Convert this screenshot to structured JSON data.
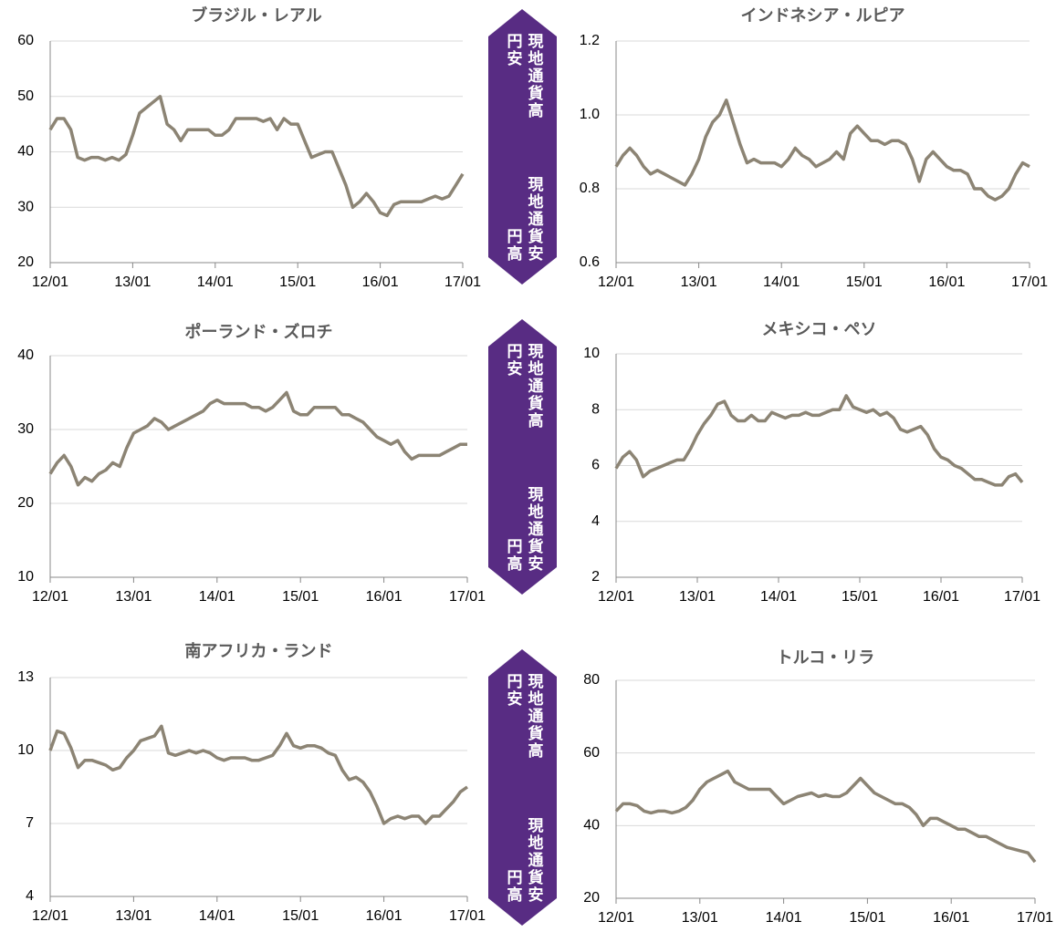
{
  "chart_data": [
    {
      "type": "line",
      "title": "ブラジル・レアル",
      "x": [
        "12/01",
        "12/02",
        "12/03",
        "12/04",
        "12/05",
        "12/06",
        "12/07",
        "12/08",
        "12/09",
        "12/10",
        "12/11",
        "12/12",
        "13/01",
        "13/02",
        "13/03",
        "13/04",
        "13/05",
        "13/06",
        "13/07",
        "13/08",
        "13/09",
        "13/10",
        "13/11",
        "13/12",
        "14/01",
        "14/02",
        "14/03",
        "14/04",
        "14/05",
        "14/06",
        "14/07",
        "14/08",
        "14/09",
        "14/10",
        "14/11",
        "14/12",
        "15/01",
        "15/02",
        "15/03",
        "15/04",
        "15/05",
        "15/06",
        "15/07",
        "15/08",
        "15/09",
        "15/10",
        "15/11",
        "15/12",
        "16/01",
        "16/02",
        "16/03",
        "16/04",
        "16/05",
        "16/06",
        "16/07",
        "16/08",
        "16/09",
        "16/10",
        "16/11",
        "16/12",
        "17/01"
      ],
      "values": [
        44,
        46,
        46,
        44,
        39,
        38.5,
        39,
        39,
        38.5,
        39,
        38.5,
        39.5,
        43,
        47,
        48,
        49,
        50,
        45,
        44,
        42,
        44,
        44,
        44,
        44,
        43,
        43,
        44,
        46,
        46,
        46,
        46,
        45.5,
        46,
        44,
        46,
        45,
        45,
        42,
        39,
        39.5,
        40,
        40,
        37,
        34,
        30,
        31,
        32.5,
        31,
        29,
        28.5,
        30.5,
        31,
        31,
        31,
        31,
        31.5,
        32,
        31.5,
        32,
        34,
        36
      ],
      "color": "#8c8474",
      "ylim": [
        20,
        60
      ],
      "yticks": [
        20,
        30,
        40,
        50,
        60
      ],
      "xticks": [
        "12/01",
        "13/01",
        "14/01",
        "15/01",
        "16/01",
        "17/01"
      ],
      "grid": true
    },
    {
      "type": "line",
      "title": "インドネシア・ルピア",
      "x": [
        "12/01",
        "12/02",
        "12/03",
        "12/04",
        "12/05",
        "12/06",
        "12/07",
        "12/08",
        "12/09",
        "12/10",
        "12/11",
        "12/12",
        "13/01",
        "13/02",
        "13/03",
        "13/04",
        "13/05",
        "13/06",
        "13/07",
        "13/08",
        "13/09",
        "13/10",
        "13/11",
        "13/12",
        "14/01",
        "14/02",
        "14/03",
        "14/04",
        "14/05",
        "14/06",
        "14/07",
        "14/08",
        "14/09",
        "14/10",
        "14/11",
        "14/12",
        "15/01",
        "15/02",
        "15/03",
        "15/04",
        "15/05",
        "15/06",
        "15/07",
        "15/08",
        "15/09",
        "15/10",
        "15/11",
        "15/12",
        "16/01",
        "16/02",
        "16/03",
        "16/04",
        "16/05",
        "16/06",
        "16/07",
        "16/08",
        "16/09",
        "16/10",
        "16/11",
        "16/12",
        "17/01"
      ],
      "values": [
        0.86,
        0.89,
        0.91,
        0.89,
        0.86,
        0.84,
        0.85,
        0.84,
        0.83,
        0.82,
        0.81,
        0.84,
        0.88,
        0.94,
        0.98,
        1.0,
        1.04,
        0.98,
        0.92,
        0.87,
        0.88,
        0.87,
        0.87,
        0.87,
        0.86,
        0.88,
        0.91,
        0.89,
        0.88,
        0.86,
        0.87,
        0.88,
        0.9,
        0.88,
        0.95,
        0.97,
        0.95,
        0.93,
        0.93,
        0.92,
        0.93,
        0.93,
        0.92,
        0.88,
        0.82,
        0.88,
        0.9,
        0.88,
        0.86,
        0.85,
        0.85,
        0.84,
        0.8,
        0.8,
        0.78,
        0.77,
        0.78,
        0.8,
        0.84,
        0.87,
        0.86
      ],
      "color": "#8c8474",
      "ylim": [
        0.6,
        1.2
      ],
      "yticks": [
        {
          "value": 0.6,
          "label": "0.6"
        },
        {
          "value": 0.8,
          "label": "0.8"
        },
        {
          "value": 1.0,
          "label": "1.0"
        },
        {
          "value": 1.2,
          "label": "1.2"
        }
      ],
      "xticks": [
        "12/01",
        "13/01",
        "14/01",
        "15/01",
        "16/01",
        "17/01"
      ],
      "grid": true
    },
    {
      "type": "line",
      "title": "ポーランド・ズロチ",
      "x": [
        "12/01",
        "12/02",
        "12/03",
        "12/04",
        "12/05",
        "12/06",
        "12/07",
        "12/08",
        "12/09",
        "12/10",
        "12/11",
        "12/12",
        "13/01",
        "13/02",
        "13/03",
        "13/04",
        "13/05",
        "13/06",
        "13/07",
        "13/08",
        "13/09",
        "13/10",
        "13/11",
        "13/12",
        "14/01",
        "14/02",
        "14/03",
        "14/04",
        "14/05",
        "14/06",
        "14/07",
        "14/08",
        "14/09",
        "14/10",
        "14/11",
        "14/12",
        "15/01",
        "15/02",
        "15/03",
        "15/04",
        "15/05",
        "15/06",
        "15/07",
        "15/08",
        "15/09",
        "15/10",
        "15/11",
        "15/12",
        "16/01",
        "16/02",
        "16/03",
        "16/04",
        "16/05",
        "16/06",
        "16/07",
        "16/08",
        "16/09",
        "16/10",
        "16/11",
        "16/12",
        "17/01"
      ],
      "values": [
        24,
        25.5,
        26.5,
        25,
        22.5,
        23.5,
        23,
        24,
        24.5,
        25.5,
        25,
        27.5,
        29.5,
        30,
        30.5,
        31.5,
        31,
        30,
        30.5,
        31,
        31.5,
        32,
        32.5,
        33.5,
        34,
        33.5,
        33.5,
        33.5,
        33.5,
        33,
        33,
        32.5,
        33,
        34,
        35,
        32.5,
        32,
        32,
        33,
        33,
        33,
        33,
        32,
        32,
        31.5,
        31,
        30,
        29,
        28.5,
        28,
        28.5,
        27,
        26,
        26.5,
        26.5,
        26.5,
        26.5,
        27,
        27.5,
        28,
        28
      ],
      "color": "#8c8474",
      "ylim": [
        10,
        40
      ],
      "yticks": [
        10,
        20,
        30,
        40
      ],
      "xticks": [
        "12/01",
        "13/01",
        "14/01",
        "15/01",
        "16/01",
        "17/01"
      ],
      "grid": true
    },
    {
      "type": "line",
      "title": "メキシコ・ペソ",
      "x": [
        "12/01",
        "12/02",
        "12/03",
        "12/04",
        "12/05",
        "12/06",
        "12/07",
        "12/08",
        "12/09",
        "12/10",
        "12/11",
        "12/12",
        "13/01",
        "13/02",
        "13/03",
        "13/04",
        "13/05",
        "13/06",
        "13/07",
        "13/08",
        "13/09",
        "13/10",
        "13/11",
        "13/12",
        "14/01",
        "14/02",
        "14/03",
        "14/04",
        "14/05",
        "14/06",
        "14/07",
        "14/08",
        "14/09",
        "14/10",
        "14/11",
        "14/12",
        "15/01",
        "15/02",
        "15/03",
        "15/04",
        "15/05",
        "15/06",
        "15/07",
        "15/08",
        "15/09",
        "15/10",
        "15/11",
        "15/12",
        "16/01",
        "16/02",
        "16/03",
        "16/04",
        "16/05",
        "16/06",
        "16/07",
        "16/08",
        "16/09",
        "16/10",
        "16/11",
        "16/12",
        "17/01"
      ],
      "values": [
        5.9,
        6.3,
        6.5,
        6.2,
        5.6,
        5.8,
        5.9,
        6.0,
        6.1,
        6.2,
        6.2,
        6.6,
        7.1,
        7.5,
        7.8,
        8.2,
        8.3,
        7.8,
        7.6,
        7.6,
        7.8,
        7.6,
        7.6,
        7.9,
        7.8,
        7.7,
        7.8,
        7.8,
        7.9,
        7.8,
        7.8,
        7.9,
        8.0,
        8.0,
        8.5,
        8.1,
        8.0,
        7.9,
        8.0,
        7.8,
        7.9,
        7.7,
        7.3,
        7.2,
        7.3,
        7.4,
        7.1,
        6.6,
        6.3,
        6.2,
        6.0,
        5.9,
        5.7,
        5.5,
        5.5,
        5.4,
        5.3,
        5.3,
        5.6,
        5.7,
        5.4
      ],
      "color": "#8c8474",
      "ylim": [
        2,
        10
      ],
      "yticks": [
        2,
        4,
        6,
        8,
        10
      ],
      "xticks": [
        "12/01",
        "13/01",
        "14/01",
        "15/01",
        "16/01",
        "17/01"
      ],
      "grid": true
    },
    {
      "type": "line",
      "title": "南アフリカ・ランド",
      "x": [
        "12/01",
        "12/02",
        "12/03",
        "12/04",
        "12/05",
        "12/06",
        "12/07",
        "12/08",
        "12/09",
        "12/10",
        "12/11",
        "12/12",
        "13/01",
        "13/02",
        "13/03",
        "13/04",
        "13/05",
        "13/06",
        "13/07",
        "13/08",
        "13/09",
        "13/10",
        "13/11",
        "13/12",
        "14/01",
        "14/02",
        "14/03",
        "14/04",
        "14/05",
        "14/06",
        "14/07",
        "14/08",
        "14/09",
        "14/10",
        "14/11",
        "14/12",
        "15/01",
        "15/02",
        "15/03",
        "15/04",
        "15/05",
        "15/06",
        "15/07",
        "15/08",
        "15/09",
        "15/10",
        "15/11",
        "15/12",
        "16/01",
        "16/02",
        "16/03",
        "16/04",
        "16/05",
        "16/06",
        "16/07",
        "16/08",
        "16/09",
        "16/10",
        "16/11",
        "16/12",
        "17/01"
      ],
      "values": [
        10.0,
        10.8,
        10.7,
        10.1,
        9.3,
        9.6,
        9.6,
        9.5,
        9.4,
        9.2,
        9.3,
        9.7,
        10.0,
        10.4,
        10.5,
        10.6,
        11.0,
        9.9,
        9.8,
        9.9,
        10.0,
        9.9,
        10.0,
        9.9,
        9.7,
        9.6,
        9.7,
        9.7,
        9.7,
        9.6,
        9.6,
        9.7,
        9.8,
        10.2,
        10.7,
        10.2,
        10.1,
        10.2,
        10.2,
        10.1,
        9.9,
        9.8,
        9.2,
        8.8,
        8.9,
        8.7,
        8.3,
        7.7,
        7.0,
        7.2,
        7.3,
        7.2,
        7.3,
        7.3,
        7.0,
        7.3,
        7.3,
        7.6,
        7.9,
        8.3,
        8.5
      ],
      "color": "#8c8474",
      "ylim": [
        4,
        13
      ],
      "yticks": [
        4,
        7,
        10,
        13
      ],
      "xticks": [
        "12/01",
        "13/01",
        "14/01",
        "15/01",
        "16/01",
        "17/01"
      ],
      "grid": true
    },
    {
      "type": "line",
      "title": "トルコ・リラ",
      "x": [
        "12/01",
        "12/02",
        "12/03",
        "12/04",
        "12/05",
        "12/06",
        "12/07",
        "12/08",
        "12/09",
        "12/10",
        "12/11",
        "12/12",
        "13/01",
        "13/02",
        "13/03",
        "13/04",
        "13/05",
        "13/06",
        "13/07",
        "13/08",
        "13/09",
        "13/10",
        "13/11",
        "13/12",
        "14/01",
        "14/02",
        "14/03",
        "14/04",
        "14/05",
        "14/06",
        "14/07",
        "14/08",
        "14/09",
        "14/10",
        "14/11",
        "14/12",
        "15/01",
        "15/02",
        "15/03",
        "15/04",
        "15/05",
        "15/06",
        "15/07",
        "15/08",
        "15/09",
        "15/10",
        "15/11",
        "15/12",
        "16/01",
        "16/02",
        "16/03",
        "16/04",
        "16/05",
        "16/06",
        "16/07",
        "16/08",
        "16/09",
        "16/10",
        "16/11",
        "16/12",
        "17/01"
      ],
      "values": [
        44,
        46,
        46,
        45.5,
        44,
        43.5,
        44,
        44,
        43.5,
        44,
        45,
        47,
        50,
        52,
        53,
        54,
        55,
        52,
        51,
        50,
        50,
        50,
        50,
        48,
        46,
        47,
        48,
        48.5,
        49,
        48,
        48.5,
        48,
        48,
        49,
        51,
        53,
        51,
        49,
        48,
        47,
        46,
        46,
        45,
        43,
        40,
        42,
        42,
        41,
        40,
        39,
        39,
        38,
        37,
        37,
        36,
        35,
        34,
        33.5,
        33,
        32.5,
        30
      ],
      "color": "#8c8474",
      "ylim": [
        20,
        80
      ],
      "yticks": [
        20,
        40,
        60,
        80
      ],
      "xticks": [
        "12/01",
        "13/01",
        "14/01",
        "15/01",
        "16/01",
        "17/01"
      ],
      "grid": true
    }
  ],
  "arrow_labels": [
    {
      "up": [
        "現地通貨高",
        "円安"
      ],
      "down": [
        "現地通貨安",
        "円高"
      ]
    },
    {
      "up": [
        "現地通貨高",
        "円安"
      ],
      "down": [
        "現地通貨安",
        "円高"
      ]
    },
    {
      "up": [
        "現地通貨高",
        "円安"
      ],
      "down": [
        "現地通貨安",
        "円高"
      ]
    }
  ]
}
